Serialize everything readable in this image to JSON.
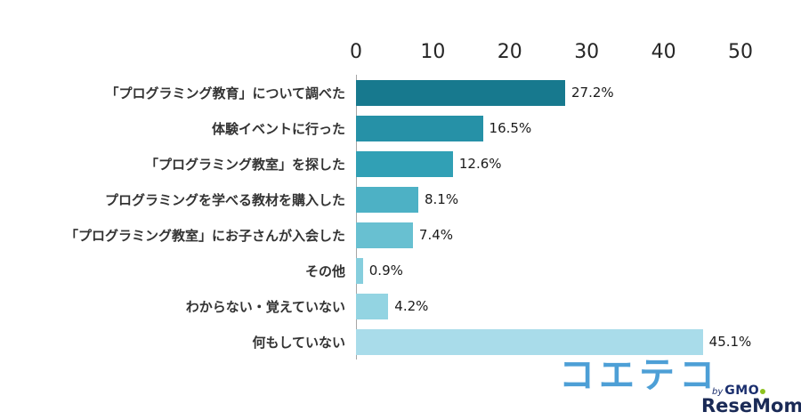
{
  "chart_data": {
    "type": "bar",
    "orientation": "horizontal",
    "title": "",
    "xlabel": "",
    "ylabel": "",
    "xlim": [
      0,
      50
    ],
    "x_ticks": [
      0,
      10,
      20,
      30,
      40,
      50
    ],
    "grid": false,
    "legend": false,
    "categories": [
      "「プログラミング教育」について調べた",
      "体験イベントに行った",
      "「プログラミング教室」を探した",
      "プログラミングを学べる教材を購入した",
      "「プログラミング教室」にお子さんが入会した",
      "その他",
      "わからない・覚えていない",
      "何もしていない"
    ],
    "values": [
      27.2,
      16.5,
      12.6,
      8.1,
      7.4,
      0.9,
      4.2,
      45.1
    ],
    "value_labels": [
      "27.2%",
      "16.5%",
      "12.6%",
      "8.1%",
      "7.4%",
      "0.9%",
      "4.2%",
      "45.1%"
    ],
    "bar_colors": [
      "#17798e",
      "#2691a7",
      "#31a0b5",
      "#4db1c5",
      "#68c0d1",
      "#86cedd",
      "#93d4e2",
      "#a9dcea"
    ],
    "axis_color": "#a6a6a6"
  },
  "logos": {
    "coeteco_text": "コエテコ",
    "coeteco_by": "by",
    "coeteco_gmo": "GMO",
    "resemom_text": "ReseMom",
    "resemom_dot": "."
  },
  "colors": {
    "coeteco_blue": "#4d9fd6",
    "gmo_navy": "#1b2f6e",
    "resemom_navy": "#1a2a56",
    "resemom_green": "#6fba2c"
  }
}
